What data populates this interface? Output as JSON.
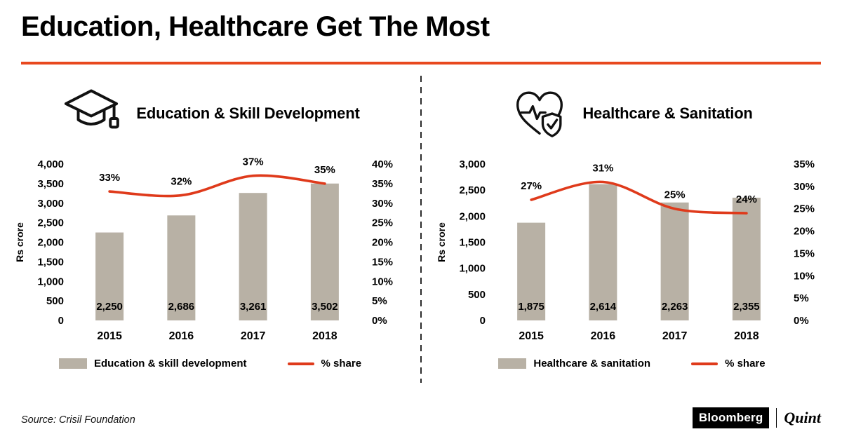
{
  "page": {
    "title": "Education, Healthcare Get The Most",
    "source_note": "Source: Crisil Foundation",
    "brand": {
      "bloomberg": "Bloomberg",
      "quint": "Quint"
    }
  },
  "colors": {
    "title_underline": "#e8481e",
    "line_red": "#df3a1b",
    "bar_fill": "#b8b1a5",
    "text": "#000000"
  },
  "chart_data": [
    {
      "type": "bar",
      "subtype": "bar+line-dual-axis",
      "title": "Education & Skill Development",
      "icon": "graduation-cap-icon",
      "categories": [
        "2015",
        "2016",
        "2017",
        "2018"
      ],
      "series": [
        {
          "name": "Education & skill development",
          "type": "bar",
          "axis": "left",
          "values": [
            2250,
            2686,
            3261,
            3502
          ],
          "value_labels": [
            "2,250",
            "2,686",
            "3,261",
            "3,502"
          ]
        },
        {
          "name": "% share",
          "type": "line",
          "axis": "right",
          "values": [
            33,
            32,
            37,
            35
          ],
          "value_labels": [
            "33%",
            "32%",
            "37%",
            "35%"
          ]
        }
      ],
      "left_axis": {
        "label": "Rs crore",
        "min": 0,
        "max": 4000,
        "step": 500,
        "tick_labels": [
          "0",
          "500",
          "1,000",
          "1,500",
          "2,000",
          "2,500",
          "3,000",
          "3,500",
          "4,000"
        ]
      },
      "right_axis": {
        "min": 0,
        "max": 40,
        "step": 5,
        "tick_labels": [
          "0%",
          "5%",
          "10%",
          "15%",
          "20%",
          "25%",
          "30%",
          "35%",
          "40%"
        ]
      },
      "legend": [
        "Education & skill development",
        "% share"
      ],
      "grid": false,
      "legend_position": "bottom"
    },
    {
      "type": "bar",
      "subtype": "bar+line-dual-axis",
      "title": "Healthcare & Sanitation",
      "icon": "heart-pulse-shield-icon",
      "categories": [
        "2015",
        "2016",
        "2017",
        "2018"
      ],
      "series": [
        {
          "name": "Healthcare & sanitation",
          "type": "bar",
          "axis": "left",
          "values": [
            1875,
            2614,
            2263,
            2355
          ],
          "value_labels": [
            "1,875",
            "2,614",
            "2,263",
            "2,355"
          ]
        },
        {
          "name": "% share",
          "type": "line",
          "axis": "right",
          "values": [
            27,
            31,
            25,
            24
          ],
          "value_labels": [
            "27%",
            "31%",
            "25%",
            "24%"
          ]
        }
      ],
      "left_axis": {
        "label": "Rs crore",
        "min": 0,
        "max": 3000,
        "step": 500,
        "tick_labels": [
          "0",
          "500",
          "1,000",
          "1,500",
          "2,000",
          "2,500",
          "3,000"
        ]
      },
      "right_axis": {
        "min": 0,
        "max": 35,
        "step": 5,
        "tick_labels": [
          "0%",
          "5%",
          "10%",
          "15%",
          "20%",
          "25%",
          "30%",
          "35%"
        ]
      },
      "legend": [
        "Healthcare & sanitation",
        "% share"
      ],
      "grid": false,
      "legend_position": "bottom"
    }
  ]
}
